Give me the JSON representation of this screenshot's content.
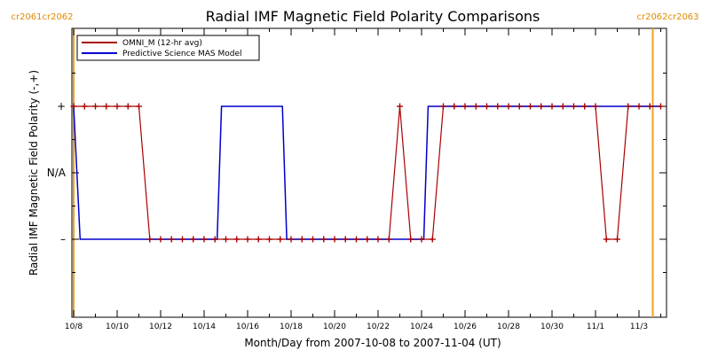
{
  "chart_data": {
    "type": "line",
    "title": "Radial IMF Magnetic Field Polarity Comparisons",
    "xlabel": "Month/Day from 2007-10-08 to 2007-11-04 (UT)",
    "ylabel": "Radial IMF Magnetic Field Polarity (-,+)",
    "x_start_day": 0,
    "x_range_days": [
      0,
      27
    ],
    "y_range": [
      -1.5,
      1.5
    ],
    "y_ticks": [
      {
        "value": 1,
        "label": "+"
      },
      {
        "value": 0,
        "label": "N/A"
      },
      {
        "value": -1,
        "label": "–"
      }
    ],
    "x_ticks": [
      {
        "day": 0,
        "label": "10/8"
      },
      {
        "day": 2,
        "label": "10/10"
      },
      {
        "day": 4,
        "label": "10/12"
      },
      {
        "day": 6,
        "label": "10/14"
      },
      {
        "day": 8,
        "label": "10/16"
      },
      {
        "day": 10,
        "label": "10/18"
      },
      {
        "day": 12,
        "label": "10/20"
      },
      {
        "day": 14,
        "label": "10/22"
      },
      {
        "day": 16,
        "label": "10/24"
      },
      {
        "day": 18,
        "label": "10/26"
      },
      {
        "day": 20,
        "label": "10/28"
      },
      {
        "day": 22,
        "label": "10/30"
      },
      {
        "day": 24,
        "label": "11/1"
      },
      {
        "day": 26,
        "label": "11/3"
      }
    ],
    "carrington_markers": [
      {
        "day": 0.05,
        "label_left": "cr2061",
        "label_right": "cr2062",
        "side": "left"
      },
      {
        "day": 27.0,
        "label_left": "cr2062",
        "label_right": "cr2063",
        "side": "right"
      }
    ],
    "legend_position": "top-left",
    "series": [
      {
        "name": "OMNI_M (12-hr avg)",
        "color": "#aa0000",
        "markers": true,
        "points": [
          [
            0.0,
            1
          ],
          [
            0.5,
            1
          ],
          [
            1.0,
            1
          ],
          [
            1.5,
            1
          ],
          [
            2.0,
            1
          ],
          [
            2.5,
            1
          ],
          [
            3.0,
            1
          ],
          [
            3.5,
            -1
          ],
          [
            4.0,
            -1
          ],
          [
            4.5,
            -1
          ],
          [
            5.0,
            -1
          ],
          [
            5.5,
            -1
          ],
          [
            6.0,
            -1
          ],
          [
            6.5,
            -1
          ],
          [
            7.0,
            -1
          ],
          [
            7.5,
            -1
          ],
          [
            8.0,
            -1
          ],
          [
            8.5,
            -1
          ],
          [
            9.0,
            -1
          ],
          [
            9.5,
            -1
          ],
          [
            10.0,
            -1
          ],
          [
            10.5,
            -1
          ],
          [
            11.0,
            -1
          ],
          [
            11.5,
            -1
          ],
          [
            12.0,
            -1
          ],
          [
            12.5,
            -1
          ],
          [
            13.0,
            -1
          ],
          [
            13.5,
            -1
          ],
          [
            14.0,
            -1
          ],
          [
            14.5,
            -1
          ],
          [
            15.0,
            1
          ],
          [
            15.5,
            -1
          ],
          [
            16.0,
            -1
          ],
          [
            16.5,
            -1
          ],
          [
            17.0,
            1
          ],
          [
            17.5,
            1
          ],
          [
            18.0,
            1
          ],
          [
            18.5,
            1
          ],
          [
            19.0,
            1
          ],
          [
            19.5,
            1
          ],
          [
            20.0,
            1
          ],
          [
            20.5,
            1
          ],
          [
            21.0,
            1
          ],
          [
            21.5,
            1
          ],
          [
            22.0,
            1
          ],
          [
            22.5,
            1
          ],
          [
            23.0,
            1
          ],
          [
            23.5,
            1
          ],
          [
            24.0,
            1
          ],
          [
            24.5,
            -1
          ],
          [
            25.0,
            -1
          ],
          [
            25.5,
            1
          ],
          [
            26.0,
            1
          ],
          [
            26.5,
            1
          ],
          [
            27.0,
            1
          ]
        ]
      },
      {
        "name": "Predictive Science MAS Model",
        "color": "#0000cc",
        "markers": false,
        "points": [
          [
            0.0,
            1
          ],
          [
            0.3,
            -1
          ],
          [
            6.6,
            -1
          ],
          [
            6.8,
            1
          ],
          [
            9.6,
            1
          ],
          [
            9.8,
            -1
          ],
          [
            16.1,
            -1
          ],
          [
            16.3,
            1
          ],
          [
            27.0,
            1
          ]
        ]
      }
    ]
  }
}
